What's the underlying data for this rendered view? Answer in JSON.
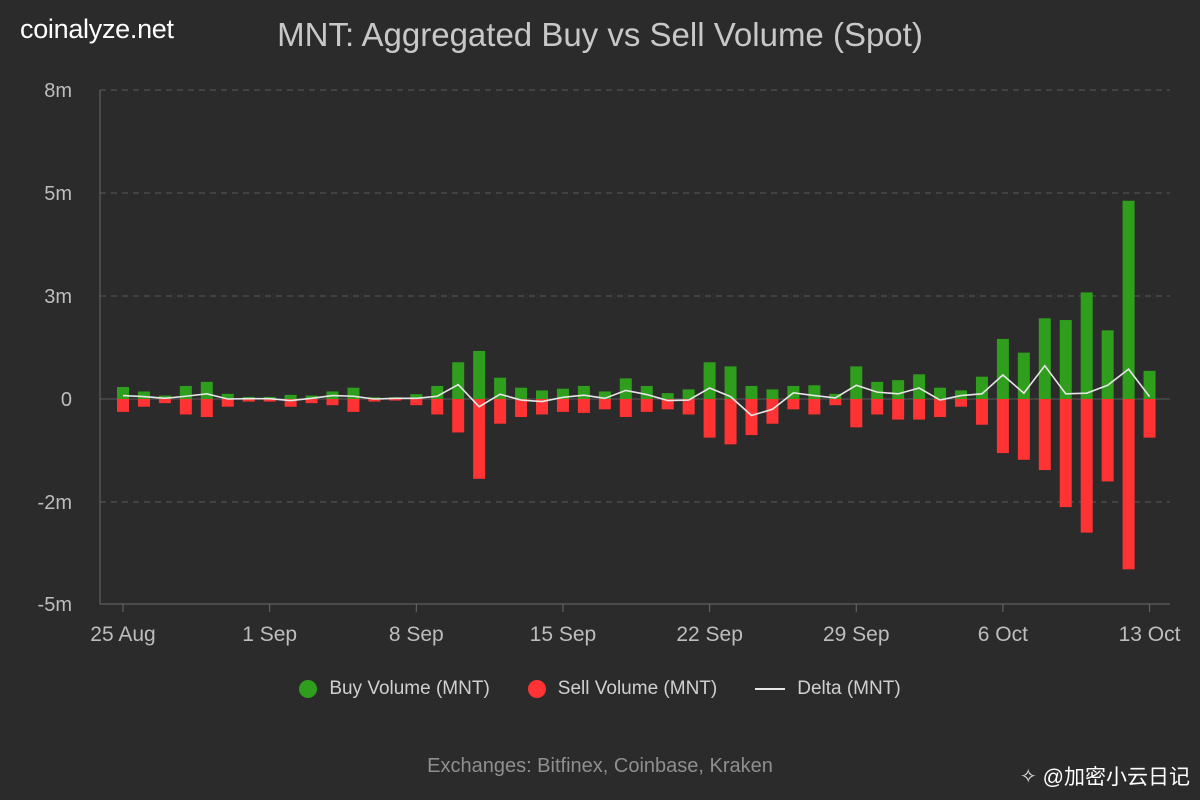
{
  "brand": "coinalyze.net",
  "exchanges_note": "Exchanges: Bitfinex, Coinbase, Kraken",
  "watermark": {
    "handle": "@加密小云日记",
    "icon": "binance-square-icon"
  },
  "colors": {
    "buy": "#2e9e1c",
    "sell": "#ff3333",
    "delta": "#e6e6e6",
    "background": "#2b2b2b",
    "grid": "#5a5a5a"
  },
  "chart_data": {
    "type": "bar",
    "title": "MNT: Aggregated Buy vs Sell Volume (Spot)",
    "y_ticks": [
      {
        "value": 8,
        "label": "8m"
      },
      {
        "value": 5,
        "label": "5m"
      },
      {
        "value": 3,
        "label": "3m"
      },
      {
        "value": 0,
        "label": "0"
      },
      {
        "value": -2,
        "label": "-2m"
      },
      {
        "value": -5,
        "label": "-5m"
      }
    ],
    "y_unit": "m (millions)",
    "x_tick_labels": [
      {
        "index": 0,
        "label": "25 Aug"
      },
      {
        "index": 7,
        "label": "1 Sep"
      },
      {
        "index": 14,
        "label": "8 Sep"
      },
      {
        "index": 21,
        "label": "15 Sep"
      },
      {
        "index": 28,
        "label": "22 Sep"
      },
      {
        "index": 35,
        "label": "29 Sep"
      },
      {
        "index": 42,
        "label": "6 Oct"
      },
      {
        "index": 49,
        "label": "13 Oct"
      }
    ],
    "series": [
      {
        "name": "Buy Volume (MNT)",
        "type": "bar",
        "values": [
          0.35,
          0.22,
          0.1,
          0.38,
          0.5,
          0.15,
          0.06,
          0.06,
          0.12,
          0.1,
          0.22,
          0.33,
          0.05,
          0.05,
          0.14,
          0.38,
          1.07,
          1.4,
          0.62,
          0.33,
          0.25,
          0.3,
          0.38,
          0.22,
          0.6,
          0.38,
          0.17,
          0.28,
          1.07,
          0.95,
          0.38,
          0.28,
          0.38,
          0.4,
          0.15,
          0.95,
          0.5,
          0.55,
          0.72,
          0.33,
          0.25,
          0.65,
          1.75,
          1.35,
          2.35,
          2.3,
          3.07,
          2.0,
          4.85,
          0.82
        ]
      },
      {
        "name": "Sell Volume (MNT)",
        "type": "bar",
        "values": [
          -0.25,
          -0.15,
          -0.08,
          -0.3,
          -0.35,
          -0.15,
          -0.05,
          -0.05,
          -0.15,
          -0.08,
          -0.12,
          -0.25,
          -0.05,
          -0.03,
          -0.12,
          -0.3,
          -0.65,
          -1.55,
          -0.48,
          -0.35,
          -0.3,
          -0.25,
          -0.27,
          -0.2,
          -0.35,
          -0.25,
          -0.2,
          -0.3,
          -0.75,
          -0.88,
          -0.7,
          -0.48,
          -0.2,
          -0.3,
          -0.12,
          -0.55,
          -0.3,
          -0.4,
          -0.4,
          -0.35,
          -0.15,
          -0.5,
          -1.05,
          -1.18,
          -1.38,
          -2.15,
          -2.9,
          -1.6,
          -3.98,
          -0.75
        ]
      },
      {
        "name": "Delta (MNT)",
        "type": "line",
        "values": [
          0.1,
          0.07,
          0.02,
          0.08,
          0.15,
          0.0,
          0.01,
          0.01,
          -0.03,
          0.02,
          0.1,
          0.08,
          0.0,
          0.02,
          0.02,
          0.08,
          0.42,
          -0.15,
          0.14,
          -0.02,
          -0.05,
          0.05,
          0.11,
          0.02,
          0.25,
          0.13,
          -0.03,
          -0.02,
          0.32,
          0.07,
          -0.32,
          -0.2,
          0.18,
          0.1,
          0.03,
          0.4,
          0.2,
          0.15,
          0.32,
          -0.02,
          0.1,
          0.15,
          0.7,
          0.17,
          0.97,
          0.15,
          0.17,
          0.4,
          0.87,
          0.07
        ]
      }
    ],
    "legend": [
      "Buy Volume (MNT)",
      "Sell Volume (MNT)",
      "Delta (MNT)"
    ],
    "grid": true,
    "legend_position": "bottom-center"
  }
}
